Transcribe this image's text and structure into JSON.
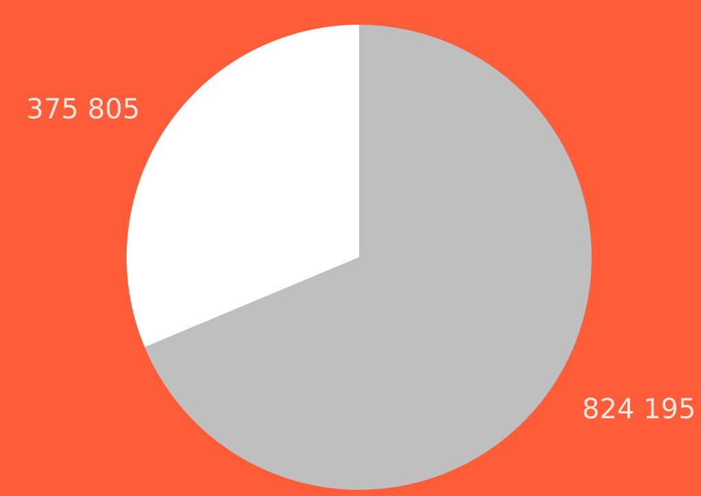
{
  "colors": {
    "background": "#FF5D3A",
    "label_text": "#FCE7E0"
  },
  "chart_data": {
    "type": "pie",
    "title": "",
    "start_angle_deg": 0,
    "direction": "counterclockwise",
    "slices": [
      {
        "label": "375 805",
        "value": 375805,
        "color": "#FFFFFF"
      },
      {
        "label": "824 195",
        "value": 824195,
        "color": "#BFBFBF"
      }
    ]
  }
}
